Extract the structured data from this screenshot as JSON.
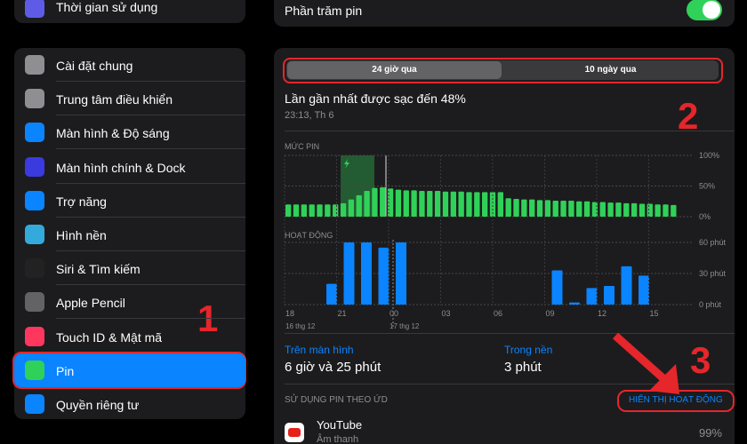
{
  "sidebar": {
    "top_item": "Thời gian sử dụng",
    "items": [
      "Cài đặt chung",
      "Trung tâm điều khiển",
      "Màn hình & Độ sáng",
      "Màn hình chính & Dock",
      "Trợ năng",
      "Hình nền",
      "Siri & Tìm kiếm",
      "Apple Pencil",
      "Touch ID & Mật mã",
      "Pin",
      "Quyền riêng tư"
    ],
    "selected": 9
  },
  "battery_percentage": {
    "label": "Phần trăm pin",
    "on": true
  },
  "segmented": {
    "options": [
      "24 giờ qua",
      "10 ngày qua"
    ],
    "selected": 0
  },
  "last_charge": {
    "text": "Lần gần nhất được sạc đến 48%",
    "time": "23:13, Th 6"
  },
  "battery_chart": {
    "title": "MỨC PIN",
    "color": "#30d158",
    "ylim": [
      0,
      100
    ],
    "yticks": [
      {
        "value": 100,
        "label": "100%"
      },
      {
        "value": 50,
        "label": "50%"
      },
      {
        "value": 0,
        "label": "0%"
      }
    ],
    "values": [
      20,
      20,
      20,
      20,
      20,
      20,
      20,
      22,
      28,
      35,
      42,
      47,
      48,
      46,
      44,
      43,
      43,
      42,
      42,
      42,
      41,
      41,
      41,
      40,
      40,
      40,
      40,
      40,
      30,
      29,
      28,
      28,
      27,
      27,
      26,
      26,
      26,
      25,
      25,
      24,
      24,
      23,
      23,
      22,
      22,
      21,
      21,
      20,
      20,
      19
    ]
  },
  "activity_chart": {
    "title": "HOẠT ĐỘNG",
    "color": "#0a84ff",
    "ylim": [
      0,
      60
    ],
    "yticks": [
      {
        "value": 60,
        "label": "60 phút"
      },
      {
        "value": 30,
        "label": "30 phút"
      },
      {
        "value": 0,
        "label": "0 phút"
      }
    ],
    "categories": [
      "18",
      null,
      null,
      "21",
      null,
      null,
      "00",
      null,
      null,
      "03",
      null,
      null,
      "06",
      null,
      null,
      "09",
      null,
      null,
      "12",
      null,
      null,
      "15",
      null
    ],
    "values": [
      0,
      0,
      20,
      60,
      60,
      55,
      60,
      0,
      0,
      0,
      0,
      0,
      0,
      0,
      0,
      33,
      2,
      16,
      18,
      37,
      28,
      0,
      0
    ],
    "date_labels": [
      "16 thg 12",
      "17 thg 12"
    ]
  },
  "stats": [
    {
      "label": "Trên màn hình",
      "value": "6 giờ và 25 phút"
    },
    {
      "label": "Trong nền",
      "value": "3 phút"
    }
  ],
  "usage": {
    "title": "SỬ DỤNG PIN THEO ỨD",
    "action": "HIỂN THỊ HOẠT ĐỘNG",
    "apps": [
      {
        "name": "YouTube",
        "detail": "Âm thanh",
        "percent": "99%"
      }
    ]
  },
  "annotations": [
    "1",
    "2",
    "3"
  ]
}
